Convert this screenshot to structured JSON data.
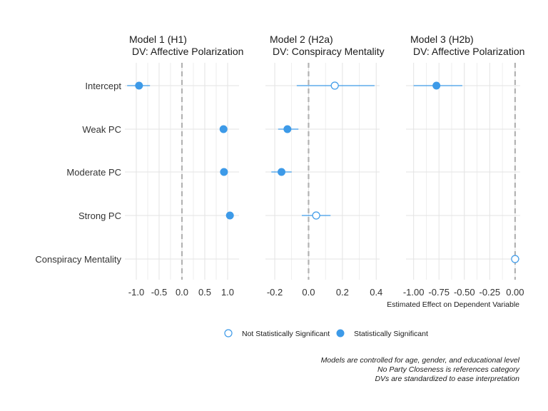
{
  "chart_data": {
    "type": "scatter",
    "subtype": "coefficient-plot",
    "row_labels": [
      "Intercept",
      "Weak PC",
      "Moderate PC",
      "Strong PC",
      "Conspiracy Mentality"
    ],
    "xlabel": "Estimated Effect on Dependent Variable",
    "reference_line": 0,
    "grid": true,
    "legend": {
      "placement": "bottom",
      "entries": [
        {
          "label": "Not Statistically Significant",
          "marker": "hollow-circle"
        },
        {
          "label": "Statistically Significant",
          "marker": "filled-circle"
        }
      ]
    },
    "panels": [
      {
        "title_line1": "Model 1 (H1)",
        "title_line2": "DV: Affective Polarization",
        "xlim": [
          -1.25,
          1.25
        ],
        "ticks": [
          -1.0,
          -0.5,
          0.0,
          0.5,
          1.0
        ],
        "tick_labels": [
          "-1.0",
          "-0.5",
          "0.0",
          "0.5",
          "1.0"
        ],
        "points": [
          {
            "term": "Intercept",
            "estimate": -0.94,
            "low": -1.2,
            "high": -0.7,
            "significant": true
          },
          {
            "term": "Weak PC",
            "estimate": 0.91,
            "low": 0.86,
            "high": 0.96,
            "significant": true
          },
          {
            "term": "Moderate PC",
            "estimate": 0.92,
            "low": 0.86,
            "high": 0.98,
            "significant": true
          },
          {
            "term": "Strong PC",
            "estimate": 1.05,
            "low": 0.98,
            "high": 1.12,
            "significant": true
          }
        ]
      },
      {
        "title_line1": "Model 2 (H2a)",
        "title_line2": "DV: Conspiracy Mentality",
        "xlim": [
          -0.255,
          0.42
        ],
        "ticks": [
          -0.2,
          0.0,
          0.2,
          0.4
        ],
        "tick_labels": [
          "-0.2",
          "0.0",
          "0.2",
          "0.4"
        ],
        "points": [
          {
            "term": "Intercept",
            "estimate": 0.155,
            "low": -0.07,
            "high": 0.39,
            "significant": false
          },
          {
            "term": "Weak PC",
            "estimate": -0.125,
            "low": -0.18,
            "high": -0.06,
            "significant": true
          },
          {
            "term": "Moderate PC",
            "estimate": -0.16,
            "low": -0.22,
            "high": -0.1,
            "significant": true
          },
          {
            "term": "Strong PC",
            "estimate": 0.045,
            "low": -0.04,
            "high": 0.13,
            "significant": false
          }
        ]
      },
      {
        "title_line1": "Model 3 (H2b)",
        "title_line2": "DV: Affective Polarization",
        "xlim": [
          -1.075,
          0.05
        ],
        "ticks": [
          -1.0,
          -0.75,
          -0.5,
          -0.25,
          0.0
        ],
        "tick_labels": [
          "-1.00",
          "-0.75",
          "-0.50",
          "-0.25",
          "0.00"
        ],
        "points": [
          {
            "term": "Intercept",
            "estimate": -0.775,
            "low": -1.0,
            "high": -0.52,
            "significant": true
          },
          {
            "term": "Conspiracy Mentality",
            "estimate": 0.0,
            "low": -0.01,
            "high": 0.01,
            "significant": false
          }
        ]
      }
    ],
    "caption_lines": [
      "Models are controlled for age, gender, and educational level",
      "No Party Closeness is references category",
      "DVs are standardized to ease interpretation"
    ],
    "colors": {
      "point": "#3d9ae8",
      "grid": "#e3e3e3",
      "reference": "#b3b3b3"
    }
  }
}
